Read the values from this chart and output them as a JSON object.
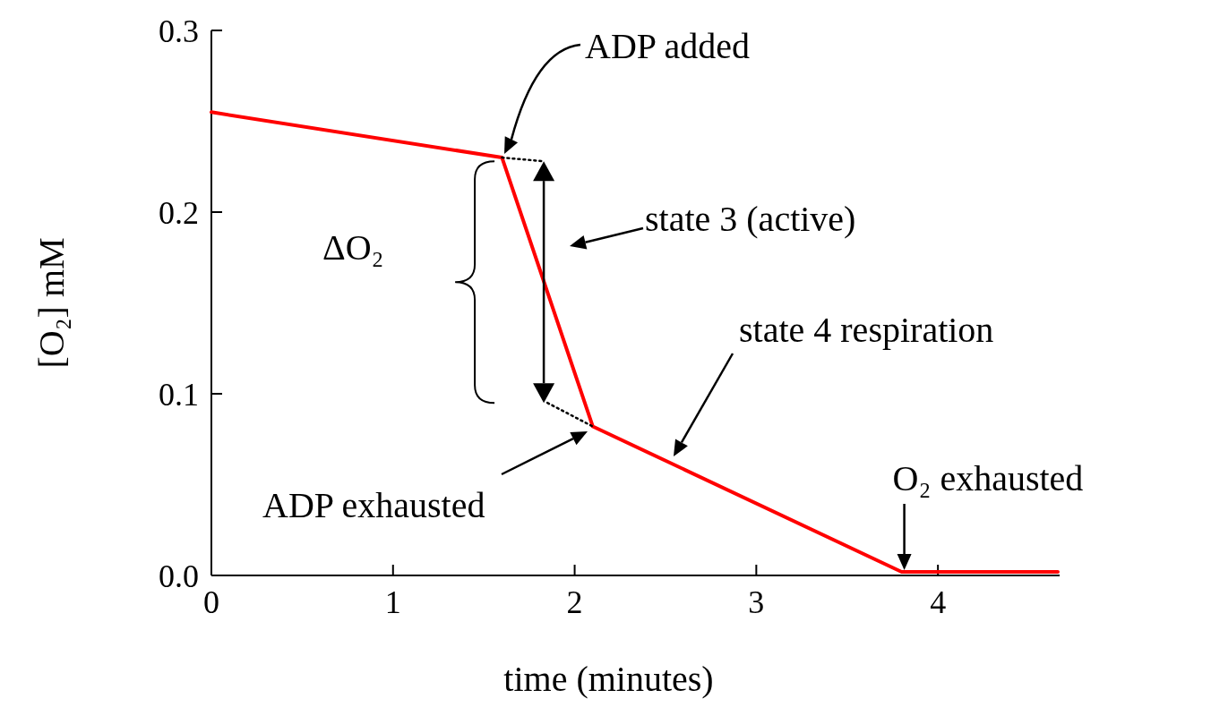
{
  "chart_data": {
    "type": "line",
    "xlabel": "time (minutes)",
    "ylabel": "[O₂] mM",
    "xlim": [
      0,
      4.67
    ],
    "ylim": [
      0,
      0.3
    ],
    "xticks": [
      0,
      1,
      2,
      3,
      4
    ],
    "yticks": [
      {
        "value": 0,
        "label": "0.0"
      },
      0.1,
      0.2,
      0.3
    ],
    "grid": false,
    "series": [
      {
        "color": "#ff0000",
        "line_style": "solid",
        "x": [
          0,
          1.6,
          2.1,
          3.8,
          4.66
        ],
        "values": [
          0.255,
          0.23,
          0.082,
          0.002,
          0.002
        ]
      },
      {
        "color": "#000000",
        "line_style": "dotted",
        "x": [
          1.6,
          1.83
        ],
        "values": [
          0.23,
          0.228
        ]
      },
      {
        "color": "#000000",
        "line_style": "dotted",
        "x": [
          1.85,
          2.1
        ],
        "values": [
          0.095,
          0.082
        ]
      }
    ],
    "annotations": [
      "ADP added",
      "ΔO₂",
      "state 3 (active)",
      "state 4 respiration",
      "ADP exhausted",
      {
        "text": "O₂ exhausted",
        "x": 3.8,
        "y": 0
      }
    ]
  }
}
